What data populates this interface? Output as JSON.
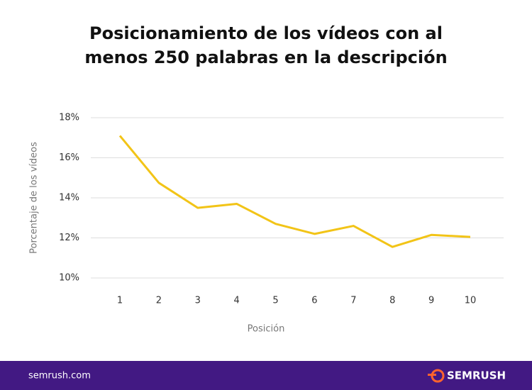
{
  "chart_data": {
    "type": "line",
    "title": "Posicionamiento de los vídeos con al menos 250 palabras en la descripción",
    "x_label": "Posición",
    "y_label": "Porcentaje de los vídeos",
    "categories": [
      "1",
      "2",
      "3",
      "4",
      "5",
      "6",
      "7",
      "8",
      "9",
      "10"
    ],
    "series": [
      {
        "name": "Porcentaje de los vídeos",
        "color": "#f2c417",
        "values": [
          17.1,
          14.75,
          13.5,
          13.7,
          12.7,
          12.2,
          12.6,
          11.55,
          12.15,
          12.05
        ]
      }
    ],
    "ylim": [
      10,
      18
    ],
    "yticks": [
      {
        "value": 10,
        "label": "10%"
      },
      {
        "value": 12,
        "label": "12%"
      },
      {
        "value": 14,
        "label": "14%"
      },
      {
        "value": 16,
        "label": "16%"
      },
      {
        "value": 18,
        "label": "18%"
      }
    ],
    "grid": true
  },
  "footer": {
    "url": "semrush.com",
    "brand": "SEMRUSH"
  }
}
